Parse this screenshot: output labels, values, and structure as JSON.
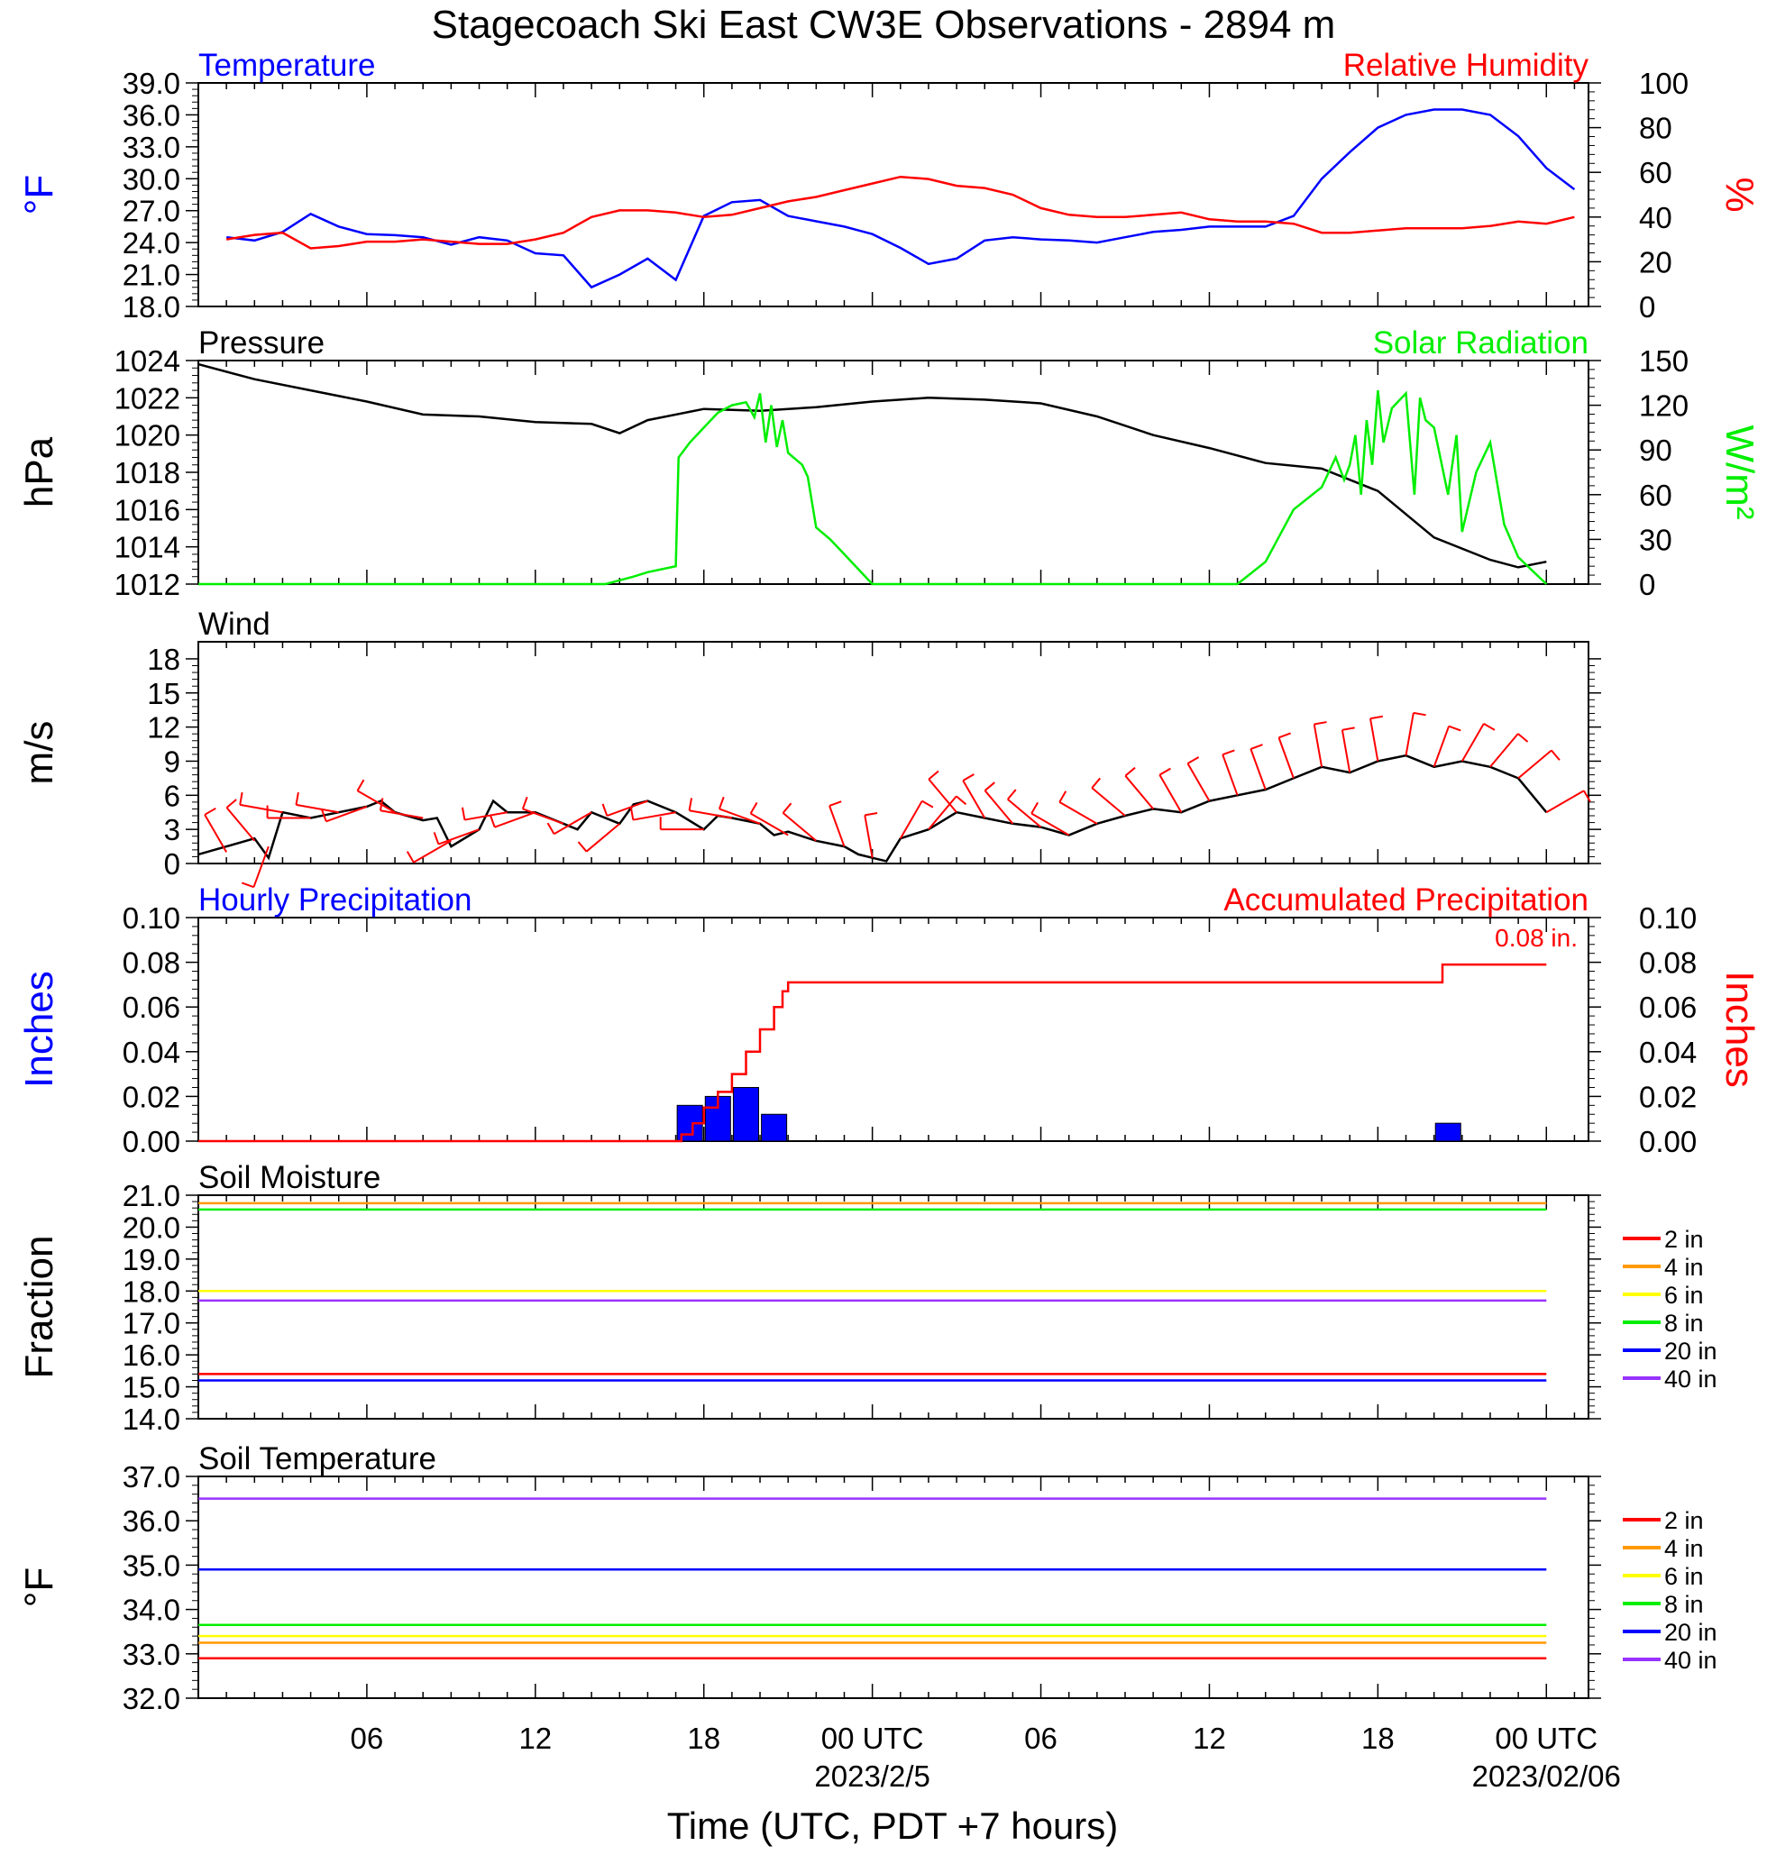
{
  "figure": {
    "title": "Stagecoach Ski East CW3E Observations - 2894 m",
    "xlabel": "Time (UTC, PDT +7 hours)",
    "x_ticks": [
      "06",
      "12",
      "18",
      "00 UTC",
      "06",
      "12",
      "18",
      "00 UTC"
    ],
    "date_labels": [
      "2023/2/5",
      "2023/02/06"
    ]
  },
  "chart_data": [
    {
      "type": "line",
      "title_left": "Temperature",
      "title_right": "Relative Humidity",
      "ylabel_left": "°F",
      "ylabel_right": "%",
      "ylim_left": [
        18.0,
        39.0
      ],
      "ylim_right": [
        0,
        100
      ],
      "yticks_left": [
        "39.0",
        "36.0",
        "33.0",
        "30.0",
        "27.0",
        "24.0",
        "21.0",
        "18.0"
      ],
      "yticks_right": [
        "100",
        "80",
        "60",
        "40",
        "20",
        "0"
      ],
      "x_hours": [
        1,
        2,
        3,
        4,
        5,
        6,
        7,
        8,
        9,
        10,
        11,
        12,
        13,
        14,
        15,
        16,
        17,
        18,
        19,
        20,
        21,
        22,
        23,
        24,
        25,
        26,
        27,
        28,
        29,
        30,
        31,
        32,
        33,
        34,
        35,
        36,
        37,
        38,
        39,
        40,
        41,
        42,
        43,
        44,
        45,
        46,
        47,
        48,
        49
      ],
      "series": [
        {
          "name": "Temperature",
          "color": "#0000ff",
          "values": [
            24.5,
            24.2,
            25.0,
            26.7,
            25.5,
            24.8,
            24.7,
            24.5,
            23.8,
            24.5,
            24.2,
            23.0,
            22.8,
            19.8,
            21.0,
            22.5,
            20.5,
            26.5,
            27.8,
            28.0,
            26.5,
            26.0,
            25.5,
            24.8,
            23.5,
            22.0,
            22.5,
            24.2,
            24.5,
            24.3,
            24.2,
            24.0,
            24.5,
            25.0,
            25.2,
            25.5,
            25.5,
            25.5,
            26.5,
            30.0,
            32.5,
            34.8,
            36.0,
            36.5,
            36.5,
            36.0,
            34.0,
            31.0,
            29.0
          ]
        },
        {
          "name": "Relative Humidity",
          "color": "#ff0000",
          "values": [
            30,
            32,
            33,
            26,
            27,
            29,
            29,
            30,
            29,
            28,
            28,
            30,
            33,
            40,
            43,
            43,
            42,
            40,
            41,
            44,
            47,
            49,
            52,
            55,
            58,
            57,
            54,
            53,
            50,
            44,
            41,
            40,
            40,
            41,
            42,
            39,
            38,
            38,
            37,
            33,
            33,
            34,
            35,
            35,
            35,
            36,
            38,
            37,
            40
          ]
        }
      ]
    },
    {
      "type": "line",
      "title_left": "Pressure",
      "title_right": "Solar Radiation",
      "ylabel_left": "hPa",
      "ylabel_right": "W/m²",
      "ylim_left": [
        1012,
        1024
      ],
      "ylim_right": [
        0,
        150
      ],
      "yticks_left": [
        "1024",
        "1022",
        "1020",
        "1018",
        "1016",
        "1014",
        "1012"
      ],
      "yticks_right": [
        "150",
        "120",
        "90",
        "60",
        "30",
        "0"
      ],
      "series": [
        {
          "name": "Pressure",
          "color": "#000000",
          "x": [
            0,
            2,
            4,
            6,
            8,
            10,
            12,
            14,
            15,
            16,
            18,
            20,
            22,
            24,
            26,
            28,
            30,
            32,
            34,
            36,
            38,
            40,
            42,
            44,
            46,
            47,
            48
          ],
          "values": [
            1023.8,
            1023.0,
            1022.4,
            1021.8,
            1021.1,
            1021.0,
            1020.7,
            1020.6,
            1020.1,
            1020.8,
            1021.4,
            1021.3,
            1021.5,
            1021.8,
            1022.0,
            1021.9,
            1021.7,
            1021.0,
            1020.0,
            1019.3,
            1018.5,
            1018.2,
            1017.0,
            1014.5,
            1013.3,
            1012.9,
            1013.2
          ]
        },
        {
          "name": "Solar Radiation",
          "color": "#00ee00",
          "x": [
            0,
            13.5,
            14.5,
            15.5,
            16,
            16.5,
            17,
            17.1,
            17.5,
            18,
            18.5,
            19,
            19.5,
            19.8,
            20,
            20.2,
            20.4,
            20.6,
            20.8,
            21,
            21.5,
            21.7,
            22,
            22.5,
            23,
            24,
            37,
            38,
            39,
            40,
            40.5,
            40.8,
            41,
            41.2,
            41.4,
            41.6,
            41.8,
            42,
            42.2,
            42.5,
            43,
            43.3,
            43.5,
            43.7,
            44,
            44.5,
            44.8,
            45,
            45.5,
            46,
            46.5,
            47,
            48
          ],
          "values": [
            0,
            0,
            0,
            5,
            8,
            10,
            12,
            85,
            95,
            105,
            115,
            120,
            122,
            112,
            128,
            95,
            120,
            92,
            110,
            88,
            80,
            72,
            38,
            30,
            20,
            0,
            0,
            15,
            50,
            65,
            85,
            70,
            80,
            100,
            60,
            110,
            80,
            130,
            95,
            118,
            128,
            60,
            125,
            110,
            105,
            60,
            100,
            35,
            75,
            95,
            40,
            18,
            0
          ]
        }
      ]
    },
    {
      "type": "line",
      "title_left": "Wind",
      "ylabel_left": "m/s",
      "ylim_left": [
        0,
        19.5
      ],
      "yticks_left": [
        "18",
        "15",
        "12",
        "9",
        "6",
        "3",
        "0"
      ],
      "series": [
        {
          "name": "Wind",
          "color": "#000000",
          "x": [
            0,
            1,
            2,
            2.5,
            3,
            4,
            5,
            6,
            6.5,
            7,
            8,
            8.5,
            9,
            10,
            10.5,
            11,
            12,
            13,
            13.5,
            14,
            15,
            15.5,
            16,
            17,
            18,
            18.5,
            19,
            20,
            20.5,
            21,
            22,
            23,
            23.5,
            24,
            24.5,
            25,
            26,
            27,
            28,
            29,
            30,
            31,
            32,
            33,
            34,
            35,
            36,
            37,
            38,
            39,
            40,
            41,
            42,
            43,
            44,
            45,
            46,
            47,
            48
          ],
          "values": [
            0.8,
            1.5,
            2.2,
            0.5,
            4.5,
            4.0,
            4.5,
            5.0,
            5.5,
            4.5,
            3.8,
            4.0,
            1.5,
            3.0,
            5.5,
            4.5,
            4.5,
            3.5,
            3.0,
            4.5,
            3.5,
            5.2,
            5.5,
            4.5,
            3.0,
            4.2,
            4.0,
            3.5,
            2.5,
            2.8,
            2.0,
            1.5,
            0.8,
            0.5,
            0.2,
            2.2,
            3.0,
            4.5,
            4.0,
            3.5,
            3.2,
            2.5,
            3.5,
            4.2,
            4.8,
            4.5,
            5.5,
            6.0,
            6.5,
            7.5,
            8.5,
            8.0,
            9.0,
            9.5,
            8.5,
            9.0,
            8.5,
            7.5,
            4.5
          ]
        },
        {
          "name": "Wind barbs",
          "color": "#ff0000",
          "x": [
            1,
            2,
            2.5,
            3,
            4,
            5,
            6,
            7,
            8,
            9,
            10,
            11,
            12,
            13,
            14,
            15,
            16,
            17,
            18,
            19,
            20,
            21,
            22,
            23,
            24,
            25,
            26,
            27,
            28,
            29,
            30,
            31,
            32,
            33,
            34,
            35,
            36,
            37,
            38,
            39,
            40,
            41,
            42,
            43,
            44,
            45,
            46,
            47,
            48
          ],
          "values": [
            1.0,
            2.0,
            1.5,
            4.5,
            4.0,
            4.5,
            5.0,
            4.5,
            4.0,
            2.0,
            3.0,
            4.5,
            4.5,
            3.5,
            4.5,
            3.5,
            5.5,
            4.5,
            3.0,
            4.0,
            3.5,
            2.5,
            2.0,
            1.5,
            0.5,
            2.2,
            3.0,
            4.5,
            4.0,
            3.5,
            3.2,
            2.5,
            3.5,
            4.2,
            4.8,
            4.5,
            5.5,
            6.0,
            6.5,
            7.5,
            8.5,
            8.0,
            9.0,
            9.5,
            8.5,
            9.0,
            8.5,
            7.5,
            4.5
          ],
          "direction_deg": [
            330,
            320,
            200,
            280,
            270,
            280,
            250,
            300,
            280,
            240,
            250,
            260,
            250,
            290,
            240,
            230,
            250,
            260,
            270,
            280,
            290,
            300,
            310,
            340,
            350,
            30,
            40,
            320,
            330,
            320,
            310,
            300,
            300,
            310,
            320,
            330,
            330,
            340,
            340,
            340,
            350,
            350,
            350,
            10,
            20,
            30,
            40,
            50,
            60
          ]
        }
      ]
    },
    {
      "type": "bar",
      "title_left": "Hourly Precipitation",
      "title_right": "Accumulated Precipitation",
      "ylabel_left": "Inches",
      "ylabel_right": "Inches",
      "ylim_left": [
        0.0,
        0.1
      ],
      "ylim_right": [
        0.0,
        0.1
      ],
      "yticks_left": [
        "0.10",
        "0.08",
        "0.06",
        "0.04",
        "0.02",
        "0.00"
      ],
      "yticks_right": [
        "0.10",
        "0.08",
        "0.06",
        "0.04",
        "0.02",
        "0.00"
      ],
      "annotation": "0.08 in.",
      "series": [
        {
          "name": "Hourly Precipitation",
          "color": "#0000ff",
          "x": [
            17,
            18,
            19,
            20,
            44
          ],
          "values": [
            0.016,
            0.02,
            0.024,
            0.012,
            0.008
          ]
        },
        {
          "name": "Accumulated Precipitation",
          "color": "#ff0000",
          "x": [
            0,
            17,
            17.2,
            17.6,
            18,
            18.5,
            19,
            19.5,
            20,
            20.5,
            20.8,
            21,
            44,
            44.3,
            48
          ],
          "values": [
            0,
            0,
            0.003,
            0.008,
            0.015,
            0.022,
            0.03,
            0.04,
            0.05,
            0.06,
            0.067,
            0.071,
            0.071,
            0.079,
            0.079
          ]
        }
      ]
    },
    {
      "type": "line",
      "title_left": "Soil Moisture",
      "ylabel_left": "Fraction",
      "ylim_left": [
        14.0,
        21.0
      ],
      "yticks_left": [
        "21.0",
        "20.0",
        "19.0",
        "18.0",
        "17.0",
        "16.0",
        "15.0",
        "14.0"
      ],
      "legend": [
        "2 in",
        "4 in",
        "6 in",
        "8 in",
        "20 in",
        "40 in"
      ],
      "legend_colors": [
        "#ff0000",
        "#ff9900",
        "#ffff00",
        "#00ee00",
        "#0000ff",
        "#9933ff"
      ],
      "series": [
        {
          "name": "2 in",
          "color": "#ff0000",
          "x": [
            0,
            48
          ],
          "values": [
            15.4,
            15.4
          ]
        },
        {
          "name": "4 in",
          "color": "#ff9900",
          "x": [
            0,
            48
          ],
          "values": [
            20.75,
            20.75
          ]
        },
        {
          "name": "6 in",
          "color": "#ffff00",
          "x": [
            0,
            48
          ],
          "values": [
            18.0,
            18.0
          ]
        },
        {
          "name": "8 in",
          "color": "#00ee00",
          "x": [
            0,
            48
          ],
          "values": [
            20.55,
            20.55
          ]
        },
        {
          "name": "20 in",
          "color": "#0000ff",
          "x": [
            0,
            48
          ],
          "values": [
            15.2,
            15.2
          ]
        },
        {
          "name": "40 in",
          "color": "#9933ff",
          "x": [
            0,
            48
          ],
          "values": [
            17.7,
            17.7
          ]
        }
      ]
    },
    {
      "type": "line",
      "title_left": "Soil Temperature",
      "ylabel_left": "°F",
      "ylim_left": [
        32.0,
        37.0
      ],
      "yticks_left": [
        "37.0",
        "36.0",
        "35.0",
        "34.0",
        "33.0",
        "32.0"
      ],
      "legend": [
        "2 in",
        "4 in",
        "6 in",
        "8 in",
        "20 in",
        "40 in"
      ],
      "legend_colors": [
        "#ff0000",
        "#ff9900",
        "#ffff00",
        "#00ee00",
        "#0000ff",
        "#9933ff"
      ],
      "series": [
        {
          "name": "2 in",
          "color": "#ff0000",
          "x": [
            0,
            48
          ],
          "values": [
            32.9,
            32.9
          ]
        },
        {
          "name": "4 in",
          "color": "#ff9900",
          "x": [
            0,
            48
          ],
          "values": [
            33.25,
            33.25
          ]
        },
        {
          "name": "6 in",
          "color": "#ffff00",
          "x": [
            0,
            48
          ],
          "values": [
            33.4,
            33.4
          ]
        },
        {
          "name": "8 in",
          "color": "#00ee00",
          "x": [
            0,
            48
          ],
          "values": [
            33.65,
            33.65
          ]
        },
        {
          "name": "20 in",
          "color": "#0000ff",
          "x": [
            0,
            48
          ],
          "values": [
            34.9,
            34.9
          ]
        },
        {
          "name": "40 in",
          "color": "#9933ff",
          "x": [
            0,
            48
          ],
          "values": [
            36.5,
            36.5
          ]
        }
      ]
    }
  ]
}
